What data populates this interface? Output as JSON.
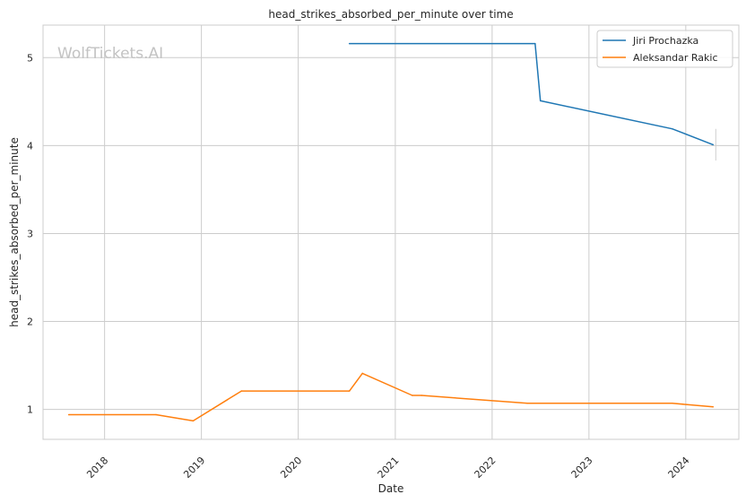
{
  "chart_data": {
    "type": "line",
    "title": "head_strikes_absorbed_per_minute over time",
    "xlabel": "Date",
    "ylabel": "head_strikes_absorbed_per_minute",
    "watermark": "WolfTickets.AI",
    "x_ticks": [
      "2018",
      "2019",
      "2020",
      "2021",
      "2022",
      "2023",
      "2024"
    ],
    "y_ticks": [
      1,
      2,
      3,
      4,
      5
    ],
    "xlim": [
      "2017-05-14",
      "2024-07-19"
    ],
    "ylim": [
      0.66,
      5.37
    ],
    "grid": true,
    "legend_position": "top-right",
    "series": [
      {
        "name": "Jiri Prochazka",
        "color": "#1f77b4",
        "points": [
          {
            "date": "2020-07-12",
            "value": 5.16
          },
          {
            "date": "2022-06-12",
            "value": 5.16
          },
          {
            "date": "2022-07-02",
            "value": 4.51
          },
          {
            "date": "2023-11-11",
            "value": 4.19
          },
          {
            "date": "2024-04-13",
            "value": 4.01
          }
        ],
        "error_bar": {
          "date": "2024-04-13",
          "low": 3.83,
          "high": 4.19
        }
      },
      {
        "name": "Aleksandar Rakic",
        "color": "#ff7f0e",
        "points": [
          {
            "date": "2017-08-19",
            "value": 0.94
          },
          {
            "date": "2018-07-14",
            "value": 0.94
          },
          {
            "date": "2018-12-01",
            "value": 0.87
          },
          {
            "date": "2019-06-01",
            "value": 1.21
          },
          {
            "date": "2020-07-12",
            "value": 1.21
          },
          {
            "date": "2020-08-30",
            "value": 1.41
          },
          {
            "date": "2021-03-06",
            "value": 1.16
          },
          {
            "date": "2021-04-10",
            "value": 1.16
          },
          {
            "date": "2022-05-14",
            "value": 1.07
          },
          {
            "date": "2023-11-11",
            "value": 1.07
          },
          {
            "date": "2024-04-13",
            "value": 1.03
          }
        ]
      }
    ]
  }
}
